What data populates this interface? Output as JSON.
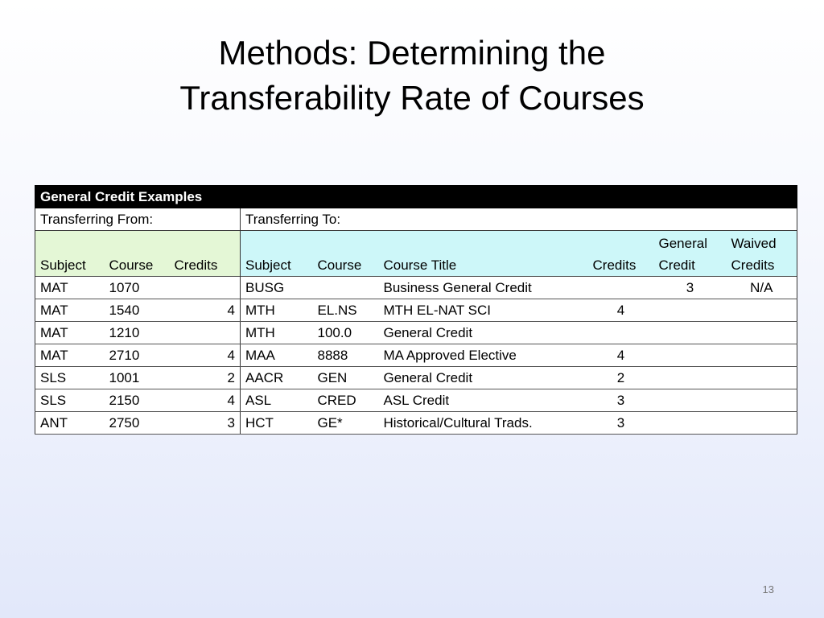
{
  "slide": {
    "title_line1": "Methods: Determining the",
    "title_line2": "Transferability Rate of Courses",
    "page_number": "13"
  },
  "table": {
    "header": "General Credit Examples",
    "from_label": "Transferring From:",
    "to_label": "Transferring To:",
    "columns": {
      "from_subject": "Subject",
      "from_course": "Course",
      "from_credits": "Credits",
      "to_subject": "Subject",
      "to_course": "Course",
      "to_title": "Course Title",
      "to_credits": "Credits",
      "general_credit_l1": "General",
      "general_credit_l2": "Credit",
      "waived_credits_l1": "Waived",
      "waived_credits_l2": "Credits"
    },
    "rows": [
      {
        "from_subject": "MAT",
        "from_course": "1070",
        "from_credits": "",
        "to_subject": "BUSG",
        "to_course": "",
        "to_title": "Business General Credit",
        "to_credits": "",
        "general_credit": "3",
        "waived_credits": "N/A"
      },
      {
        "from_subject": "MAT",
        "from_course": "1540",
        "from_credits": "4",
        "to_subject": "MTH",
        "to_course": "EL.NS",
        "to_title": "MTH EL-NAT SCI",
        "to_credits": "4",
        "general_credit": "",
        "waived_credits": ""
      },
      {
        "from_subject": "MAT",
        "from_course": "1210",
        "from_credits": "",
        "to_subject": "MTH",
        "to_course": "100.0",
        "to_title": "General Credit",
        "to_credits": "",
        "general_credit": "",
        "waived_credits": ""
      },
      {
        "from_subject": "MAT",
        "from_course": "2710",
        "from_credits": "4",
        "to_subject": "MAA",
        "to_course": "8888",
        "to_title": "MA Approved Elective",
        "to_credits": "4",
        "general_credit": "",
        "waived_credits": ""
      },
      {
        "from_subject": "SLS",
        "from_course": "1001",
        "from_credits": "2",
        "to_subject": "AACR",
        "to_course": "GEN",
        "to_title": "General Credit",
        "to_credits": "2",
        "general_credit": "",
        "waived_credits": ""
      },
      {
        "from_subject": "SLS",
        "from_course": "2150",
        "from_credits": "4",
        "to_subject": "ASL",
        "to_course": "CRED",
        "to_title": "ASL Credit",
        "to_credits": "3",
        "general_credit": "",
        "waived_credits": ""
      },
      {
        "from_subject": "ANT",
        "from_course": "2750",
        "from_credits": "3",
        "to_subject": "HCT",
        "to_course": "GE*",
        "to_title": "Historical/Cultural Trads.",
        "to_credits": "3",
        "general_credit": "",
        "waived_credits": ""
      }
    ]
  }
}
